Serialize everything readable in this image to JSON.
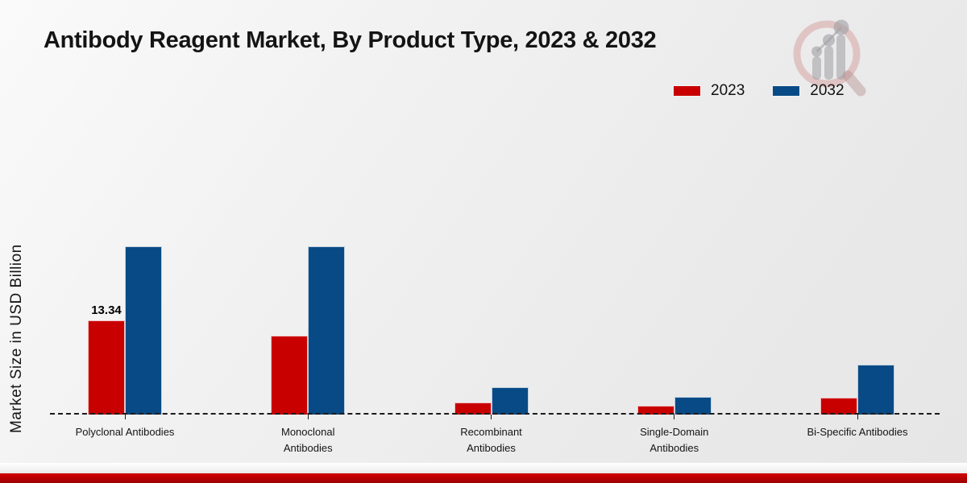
{
  "chart_data": {
    "type": "bar",
    "title": "Antibody Reagent Market, By Product Type, 2023 & 2032",
    "categories": [
      "Polyclonal Antibodies",
      "Monoclonal Antibodies",
      "Recombinant Antibodies",
      "Single-Domain Antibodies",
      "Bi-Specific Antibodies"
    ],
    "series": [
      {
        "name": "2023",
        "color": "#c80000",
        "values": [
          13.34,
          11.2,
          1.7,
          1.25,
          2.4
        ]
      },
      {
        "name": "2032",
        "color": "#084a85",
        "values": [
          23.8,
          23.8,
          3.9,
          2.5,
          7.1
        ]
      }
    ],
    "xlabel": "",
    "ylabel": "Market Size in USD Billion",
    "ylim": [
      0,
      26
    ],
    "grid": false,
    "legend_position": "top-right",
    "baseline_style": "dashed",
    "value_labels": [
      {
        "series": "2023",
        "category_index": 0,
        "text": "13.34"
      }
    ]
  },
  "footer": {
    "accent_color": "#c00000"
  },
  "logo": {
    "name": "market-research-magnifier-logo"
  }
}
